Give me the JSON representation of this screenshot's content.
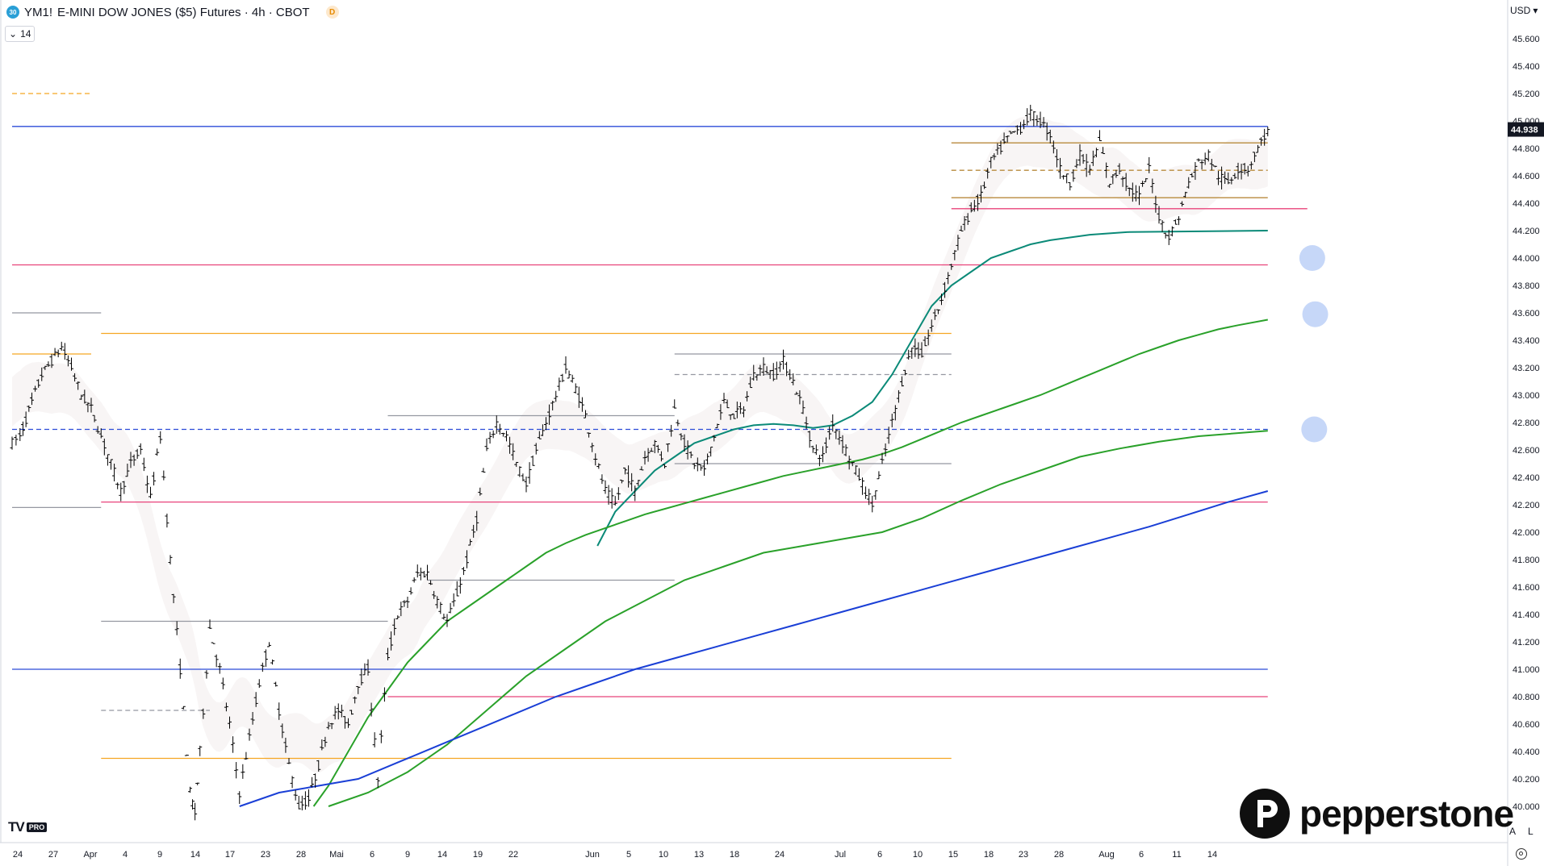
{
  "header": {
    "symbol": "YM1!",
    "symbol_badge": "30",
    "title": "E-MINI DOW JONES ($5) Futures · 4h · CBOT",
    "delayed_badge": "D",
    "indicator_count": "14",
    "currency": "USD"
  },
  "footer": {
    "tv_mark": "TV",
    "tv_pro": "PRO",
    "axis_auto": "A",
    "axis_log": "L",
    "brand": "pepperstone"
  },
  "colors": {
    "candle": "#000000",
    "ema_teal": "#0b8a78",
    "ema_green": "#2aa12a",
    "ema_blue": "#1a3fd6",
    "resistance_blue": "#2b4bd8",
    "orange": "#f5a623",
    "pink": "#e8437a",
    "gray": "#9598a1",
    "brown": "#b88a3d",
    "price_badge": "#131722",
    "marker_circle": "#bcd0f7"
  },
  "chart_data": {
    "type": "candlestick",
    "instrument": "E-MINI DOW JONES ($5) Futures",
    "timeframe": "4h",
    "exchange": "CBOT",
    "currency": "USD",
    "last_price": "44.938",
    "y_axis": {
      "ticks": [
        "45.600",
        "45.400",
        "45.200",
        "45.000",
        "44.800",
        "44.600",
        "44.400",
        "44.200",
        "44.000",
        "43.800",
        "43.600",
        "43.400",
        "43.200",
        "43.000",
        "42.800",
        "42.600",
        "42.400",
        "42.200",
        "42.000",
        "41.800",
        "41.600",
        "41.400",
        "41.200",
        "41.000",
        "40.800",
        "40.600",
        "40.400",
        "40.200",
        "40.000"
      ],
      "range": [
        39950,
        45700
      ]
    },
    "x_axis": {
      "labels": [
        "24",
        "27",
        "Apr",
        "4",
        "9",
        "14",
        "17",
        "23",
        "28",
        "Mai",
        "6",
        "9",
        "14",
        "19",
        "22",
        "Jun",
        "5",
        "10",
        "13",
        "18",
        "24",
        "Jul",
        "6",
        "10",
        "15",
        "18",
        "23",
        "28",
        "Aug",
        "6",
        "11",
        "14"
      ]
    },
    "price_path": [
      [
        0,
        42650
      ],
      [
        0.8,
        42700
      ],
      [
        2,
        42950
      ],
      [
        3,
        43150
      ],
      [
        4,
        43250
      ],
      [
        5,
        43350
      ],
      [
        6,
        43200
      ],
      [
        7,
        43000
      ],
      [
        8,
        42900
      ],
      [
        9,
        42700
      ],
      [
        10,
        42500
      ],
      [
        11,
        42300
      ],
      [
        12,
        42500
      ],
      [
        13,
        42600
      ],
      [
        14,
        42250
      ],
      [
        15,
        42700
      ],
      [
        16,
        41800
      ],
      [
        17,
        41000
      ],
      [
        18,
        40100
      ],
      [
        18.5,
        39950
      ],
      [
        19,
        40400
      ],
      [
        20,
        41300
      ],
      [
        21,
        41000
      ],
      [
        22,
        40600
      ],
      [
        23,
        40100
      ],
      [
        24,
        40500
      ],
      [
        25,
        40900
      ],
      [
        26,
        41200
      ],
      [
        27,
        40700
      ],
      [
        28,
        40300
      ],
      [
        29,
        40000
      ],
      [
        30,
        40050
      ],
      [
        31,
        40300
      ],
      [
        32,
        40600
      ],
      [
        33,
        40700
      ],
      [
        34,
        40600
      ],
      [
        35,
        40900
      ],
      [
        36,
        41000
      ],
      [
        37,
        40200
      ],
      [
        38,
        41100
      ],
      [
        39,
        41400
      ],
      [
        40,
        41500
      ],
      [
        41,
        41700
      ],
      [
        42,
        41700
      ],
      [
        43,
        41500
      ],
      [
        44,
        41350
      ],
      [
        45,
        41550
      ],
      [
        46,
        41800
      ],
      [
        47,
        42100
      ],
      [
        48,
        42600
      ],
      [
        49,
        42800
      ],
      [
        50,
        42700
      ],
      [
        51,
        42500
      ],
      [
        52,
        42350
      ],
      [
        53,
        42600
      ],
      [
        54,
        42800
      ],
      [
        55,
        43000
      ],
      [
        56,
        43200
      ],
      [
        57,
        43050
      ],
      [
        58,
        42850
      ],
      [
        59,
        42550
      ],
      [
        60,
        42300
      ],
      [
        61,
        42200
      ],
      [
        62,
        42450
      ],
      [
        63,
        42300
      ],
      [
        64,
        42550
      ],
      [
        65,
        42650
      ],
      [
        66,
        42500
      ],
      [
        67,
        42900
      ],
      [
        68,
        42650
      ],
      [
        69,
        42500
      ],
      [
        70,
        42450
      ],
      [
        71,
        42700
      ],
      [
        72,
        42950
      ],
      [
        73,
        42850
      ],
      [
        74,
        42900
      ],
      [
        75,
        43150
      ],
      [
        76,
        43200
      ],
      [
        77,
        43150
      ],
      [
        78,
        43250
      ],
      [
        79,
        43100
      ],
      [
        80,
        42900
      ],
      [
        81,
        42600
      ],
      [
        82,
        42550
      ],
      [
        83,
        42800
      ],
      [
        84,
        42650
      ],
      [
        85,
        42500
      ],
      [
        86,
        42350
      ],
      [
        87,
        42200
      ],
      [
        88,
        42500
      ],
      [
        89,
        42800
      ],
      [
        90,
        43100
      ],
      [
        91,
        43350
      ],
      [
        92,
        43300
      ],
      [
        93,
        43500
      ],
      [
        94,
        43700
      ],
      [
        95,
        43950
      ],
      [
        96,
        44200
      ],
      [
        97,
        44350
      ],
      [
        98,
        44450
      ],
      [
        99,
        44700
      ],
      [
        100,
        44800
      ],
      [
        101,
        44900
      ],
      [
        102,
        44950
      ],
      [
        103,
        45050
      ],
      [
        104,
        45000
      ],
      [
        105,
        44900
      ],
      [
        106,
        44650
      ],
      [
        107,
        44550
      ],
      [
        108,
        44750
      ],
      [
        109,
        44650
      ],
      [
        110,
        44850
      ],
      [
        111,
        44550
      ],
      [
        112,
        44650
      ],
      [
        113,
        44500
      ],
      [
        114,
        44450
      ],
      [
        115,
        44650
      ],
      [
        116,
        44300
      ],
      [
        117,
        44150
      ],
      [
        118,
        44300
      ],
      [
        119,
        44550
      ],
      [
        120,
        44700
      ],
      [
        121,
        44750
      ],
      [
        122,
        44600
      ],
      [
        123,
        44550
      ],
      [
        124,
        44650
      ],
      [
        125,
        44650
      ],
      [
        126,
        44800
      ],
      [
        127,
        44938
      ]
    ],
    "indicator_lines": [
      {
        "name": "",
        "color": "#0b8a78",
        "points": [
          [
            59.2,
            41900
          ],
          [
            61,
            42150
          ],
          [
            63,
            42300
          ],
          [
            65,
            42450
          ],
          [
            67,
            42550
          ],
          [
            69,
            42650
          ],
          [
            71,
            42700
          ],
          [
            73,
            42750
          ],
          [
            75,
            42780
          ],
          [
            77,
            42790
          ],
          [
            79,
            42780
          ],
          [
            81,
            42760
          ],
          [
            83,
            42780
          ],
          [
            85,
            42850
          ],
          [
            87,
            42950
          ],
          [
            89,
            43150
          ],
          [
            91,
            43400
          ],
          [
            93,
            43650
          ],
          [
            95,
            43800
          ],
          [
            97,
            43900
          ],
          [
            99,
            44000
          ],
          [
            101,
            44050
          ],
          [
            103,
            44100
          ],
          [
            105,
            44130
          ],
          [
            107,
            44150
          ],
          [
            109,
            44170
          ],
          [
            111,
            44180
          ],
          [
            113,
            44190
          ],
          [
            127,
            44200
          ]
        ]
      },
      {
        "name": "",
        "color": "#2aa12a",
        "points": [
          [
            30.5,
            40000
          ],
          [
            32,
            40150
          ],
          [
            34,
            40400
          ],
          [
            36,
            40650
          ],
          [
            38,
            40850
          ],
          [
            40,
            41050
          ],
          [
            42,
            41200
          ],
          [
            44,
            41350
          ],
          [
            46,
            41450
          ],
          [
            48,
            41550
          ],
          [
            50,
            41650
          ],
          [
            52,
            41750
          ],
          [
            54,
            41850
          ],
          [
            56,
            41920
          ],
          [
            58,
            41980
          ],
          [
            60,
            42030
          ],
          [
            62,
            42080
          ],
          [
            64,
            42130
          ],
          [
            66,
            42170
          ],
          [
            68,
            42210
          ],
          [
            70,
            42250
          ],
          [
            72,
            42290
          ],
          [
            74,
            42330
          ],
          [
            76,
            42370
          ],
          [
            78,
            42410
          ],
          [
            80,
            42440
          ],
          [
            82,
            42470
          ],
          [
            84,
            42500
          ],
          [
            86,
            42530
          ],
          [
            88,
            42570
          ],
          [
            90,
            42620
          ],
          [
            92,
            42680
          ],
          [
            94,
            42740
          ],
          [
            96,
            42800
          ],
          [
            98,
            42850
          ],
          [
            100,
            42900
          ],
          [
            102,
            42950
          ],
          [
            104,
            43000
          ],
          [
            106,
            43060
          ],
          [
            108,
            43120
          ],
          [
            110,
            43180
          ],
          [
            112,
            43240
          ],
          [
            114,
            43300
          ],
          [
            116,
            43350
          ],
          [
            118,
            43400
          ],
          [
            120,
            43440
          ],
          [
            122,
            43480
          ],
          [
            124,
            43510
          ],
          [
            127,
            43550
          ]
        ]
      },
      {
        "name": "",
        "color": "#2aa12a",
        "points": [
          [
            32,
            40000
          ],
          [
            36,
            40100
          ],
          [
            40,
            40250
          ],
          [
            44,
            40450
          ],
          [
            48,
            40700
          ],
          [
            52,
            40950
          ],
          [
            56,
            41150
          ],
          [
            60,
            41350
          ],
          [
            64,
            41500
          ],
          [
            68,
            41650
          ],
          [
            72,
            41750
          ],
          [
            76,
            41850
          ],
          [
            80,
            41900
          ],
          [
            84,
            41950
          ],
          [
            88,
            42000
          ],
          [
            92,
            42100
          ],
          [
            96,
            42230
          ],
          [
            100,
            42350
          ],
          [
            104,
            42450
          ],
          [
            108,
            42550
          ],
          [
            112,
            42610
          ],
          [
            116,
            42660
          ],
          [
            120,
            42700
          ],
          [
            127,
            42740
          ]
        ]
      },
      {
        "name": "",
        "color": "#1a3fd6",
        "points": [
          [
            23,
            40000
          ],
          [
            27,
            40100
          ],
          [
            31,
            40150
          ],
          [
            35,
            40200
          ],
          [
            39,
            40320
          ],
          [
            43,
            40440
          ],
          [
            47,
            40560
          ],
          [
            51,
            40680
          ],
          [
            55,
            40800
          ],
          [
            59,
            40900
          ],
          [
            63,
            41000
          ],
          [
            67,
            41080
          ],
          [
            71,
            41160
          ],
          [
            75,
            41240
          ],
          [
            79,
            41320
          ],
          [
            83,
            41400
          ],
          [
            87,
            41480
          ],
          [
            91,
            41560
          ],
          [
            95,
            41640
          ],
          [
            99,
            41720
          ],
          [
            103,
            41800
          ],
          [
            107,
            41880
          ],
          [
            111,
            41960
          ],
          [
            115,
            42040
          ],
          [
            119,
            42130
          ],
          [
            123,
            42220
          ],
          [
            127,
            42300
          ]
        ]
      }
    ],
    "horizontal_levels": [
      {
        "value": 44960,
        "color": "#2b4bd8",
        "from": 0,
        "to": 127,
        "style": "solid"
      },
      {
        "value": 41000,
        "color": "#2b4bd8",
        "from": 0,
        "to": 127,
        "style": "solid"
      },
      {
        "value": 42750,
        "color": "#2b4bd8",
        "from": 0,
        "to": 127,
        "style": "dashed"
      },
      {
        "value": 45200,
        "color": "#f5a623",
        "from": 0,
        "to": 8,
        "style": "dashed"
      },
      {
        "value": 43300,
        "color": "#f5a623",
        "from": 0,
        "to": 8,
        "style": "solid"
      },
      {
        "value": 43450,
        "color": "#f5a623",
        "from": 9,
        "to": 95,
        "style": "solid"
      },
      {
        "value": 40350,
        "color": "#f5a623",
        "from": 9,
        "to": 95,
        "style": "solid"
      },
      {
        "value": 43950,
        "color": "#e8437a",
        "from": 0,
        "to": 127,
        "style": "solid"
      },
      {
        "value": 42220,
        "color": "#e8437a",
        "from": 9,
        "to": 127,
        "style": "solid"
      },
      {
        "value": 40800,
        "color": "#e8437a",
        "from": 38,
        "to": 127,
        "style": "solid"
      },
      {
        "value": 44360,
        "color": "#e8437a",
        "from": 95,
        "to": 131,
        "style": "solid"
      },
      {
        "value": 43600,
        "color": "#9598a1",
        "from": 0,
        "to": 9,
        "style": "solid"
      },
      {
        "value": 42180,
        "color": "#9598a1",
        "from": 0,
        "to": 9,
        "style": "solid"
      },
      {
        "value": 42850,
        "color": "#9598a1",
        "from": 38,
        "to": 67,
        "style": "solid"
      },
      {
        "value": 41650,
        "color": "#9598a1",
        "from": 42,
        "to": 67,
        "style": "solid"
      },
      {
        "value": 41350,
        "color": "#9598a1",
        "from": 9,
        "to": 38,
        "style": "solid"
      },
      {
        "value": 40700,
        "color": "#9598a1",
        "from": 9,
        "to": 20,
        "style": "dashed"
      },
      {
        "value": 43300,
        "color": "#9598a1",
        "from": 67,
        "to": 95,
        "style": "solid"
      },
      {
        "value": 43150,
        "color": "#9598a1",
        "from": 67,
        "to": 95,
        "style": "dashed"
      },
      {
        "value": 42500,
        "color": "#9598a1",
        "from": 67,
        "to": 95,
        "style": "solid"
      },
      {
        "value": 44840,
        "color": "#b88a3d",
        "from": 95,
        "to": 127,
        "style": "solid"
      },
      {
        "value": 44640,
        "color": "#b88a3d",
        "from": 95,
        "to": 127,
        "style": "dashed"
      },
      {
        "value": 44440,
        "color": "#b88a3d",
        "from": 95,
        "to": 127,
        "style": "solid"
      }
    ],
    "markers": [
      {
        "type": "circle",
        "x": 131.5,
        "y": 44000
      },
      {
        "type": "circle",
        "x": 131.8,
        "y": 43590
      },
      {
        "type": "circle",
        "x": 131.7,
        "y": 42750
      }
    ]
  }
}
